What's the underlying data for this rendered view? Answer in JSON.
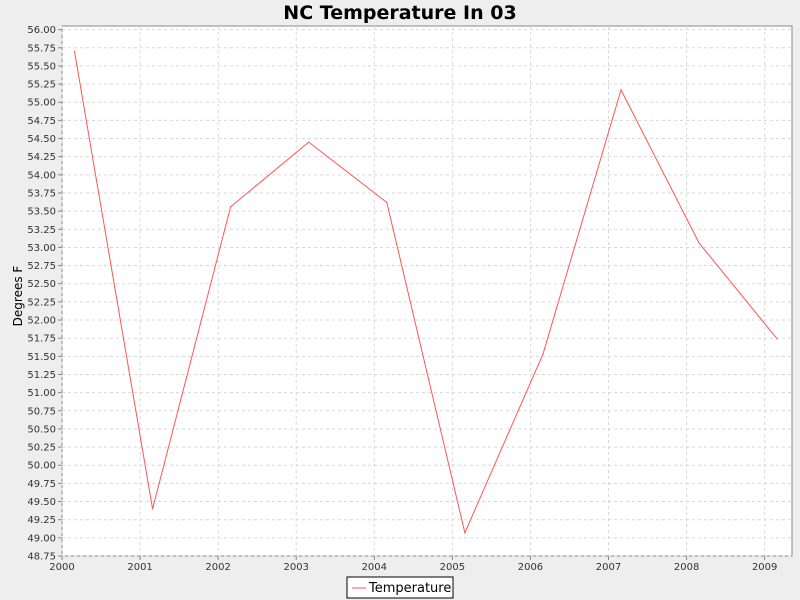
{
  "chart_data": {
    "type": "line",
    "title": "NC Temperature In 03",
    "xlabel": "",
    "ylabel": "Degrees F",
    "xlim": [
      2000,
      2009.35
    ],
    "ylim": [
      48.75,
      56.05
    ],
    "x_ticks": [
      "2000",
      "2001",
      "2002",
      "2003",
      "2004",
      "2005",
      "2006",
      "2007",
      "2008",
      "2009"
    ],
    "y_ticks": [
      "48.75",
      "49.00",
      "49.25",
      "49.50",
      "49.75",
      "50.00",
      "50.25",
      "50.50",
      "50.75",
      "51.00",
      "51.25",
      "51.50",
      "51.75",
      "52.00",
      "52.25",
      "52.50",
      "52.75",
      "53.00",
      "53.25",
      "53.50",
      "53.75",
      "54.00",
      "54.25",
      "54.50",
      "54.75",
      "55.00",
      "55.25",
      "55.50",
      "55.75",
      "56.00"
    ],
    "grid": true,
    "legend_position": "bottom",
    "series": [
      {
        "name": "Temperature",
        "color": "#ff5555",
        "x": [
          2000.16,
          2001.16,
          2002.16,
          2003.16,
          2004.16,
          2005.16,
          2006.16,
          2007.16,
          2008.16,
          2009.16
        ],
        "values": [
          55.7,
          49.4,
          53.56,
          54.45,
          53.62,
          49.07,
          51.53,
          55.17,
          53.06,
          51.74
        ]
      }
    ]
  }
}
